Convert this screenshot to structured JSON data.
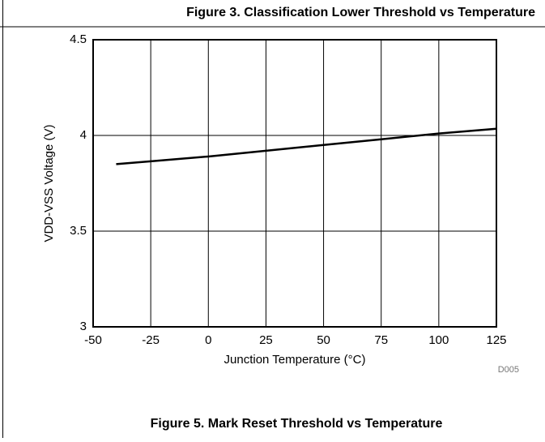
{
  "chart_data": {
    "type": "line",
    "title": "Figure 3. Classification Lower Threshold vs Temperature",
    "xlabel": "Junction Temperature (°C)",
    "ylabel": "VDD-VSS Voltage (V)",
    "code": "D005",
    "x": [
      -40,
      -25,
      0,
      25,
      50,
      75,
      100,
      125
    ],
    "series": [
      {
        "color": "#000000",
        "values": [
          3.85,
          3.865,
          3.89,
          3.92,
          3.95,
          3.98,
          4.01,
          4.035
        ]
      }
    ],
    "xlim": [
      -50,
      125
    ],
    "xticks": [
      -50,
      -25,
      0,
      25,
      50,
      75,
      100,
      125
    ],
    "ylim": [
      3,
      4.5
    ],
    "yticks": [
      3,
      3.5,
      4,
      4.5
    ],
    "grid": true
  },
  "next_figure_title": "Figure 5. Mark Reset Threshold vs Temperature"
}
